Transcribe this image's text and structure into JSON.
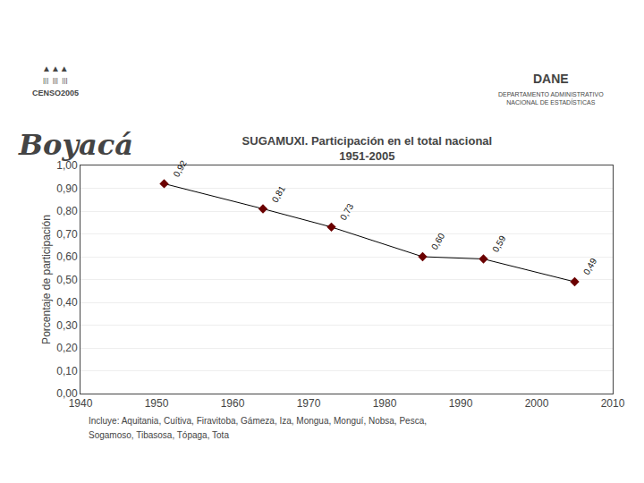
{
  "chart_data": {
    "type": "line",
    "title": "SUGAMUXI. Participación en el total nacional",
    "subtitle": "1951-2005",
    "ylabel": "Porcentaje de participación",
    "x": [
      1951,
      1964,
      1973,
      1985,
      1993,
      2005
    ],
    "series": [
      {
        "color": "#000000",
        "colors": [
          "#6B0000",
          "#6B0000",
          "#6B0000",
          "#6B0000",
          "#6B0000",
          "#6B0000"
        ],
        "marker": "diamond",
        "values": [
          0.92,
          0.81,
          0.73,
          0.6,
          0.59,
          0.49
        ],
        "value_labels": [
          "0,92",
          "0,81",
          "0,73",
          "0,60",
          "0,59",
          "0,49"
        ]
      }
    ],
    "data_labels": true,
    "xlim": [
      1940,
      2010
    ],
    "xticks": [
      1940,
      1950,
      1960,
      1970,
      1980,
      1990,
      2000,
      2010
    ],
    "ylim": [
      0.0,
      1.0
    ],
    "yticks": [
      {
        "value": 0.0,
        "label": "0,00"
      },
      {
        "value": 0.1,
        "label": "0,10"
      },
      {
        "value": 0.2,
        "label": "0,20"
      },
      {
        "value": 0.3,
        "label": "0,30"
      },
      {
        "value": 0.4,
        "label": "0,40"
      },
      {
        "value": 0.5,
        "label": "0,50"
      },
      {
        "value": 0.6,
        "label": "0,60"
      },
      {
        "value": 0.7,
        "label": "0,70"
      },
      {
        "value": 0.8,
        "label": "0,80"
      },
      {
        "value": 0.9,
        "label": "0,90"
      },
      {
        "value": 1.0,
        "label": "1,00"
      }
    ],
    "grid": true,
    "annotations": [
      "Boyacá",
      "▲▲▲",
      "|||  |||  |||",
      "CENSO2005",
      "DANE",
      "DEPARTAMENTO ADMINISTRATIVO\nNACIONAL DE ESTADÍSTICAS",
      "Incluye: Aquitania, Cuítiva, Firavitoba, Gámeza, Iza, Mongua, Monguí, Nobsa, Pesca,",
      "Sogamoso, Tibasosa, Tópaga, Tota"
    ]
  }
}
